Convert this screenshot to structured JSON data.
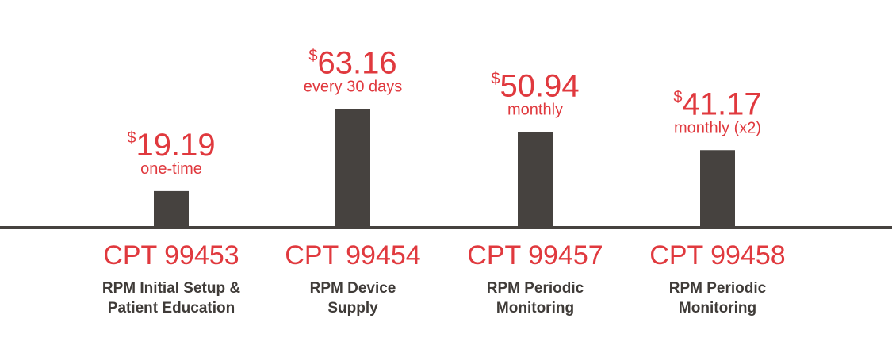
{
  "chart_data": {
    "type": "bar",
    "categories": [
      "CPT 99453",
      "CPT 99454",
      "CPT 99457",
      "CPT 99458"
    ],
    "values": [
      19.19,
      63.16,
      50.94,
      41.17
    ],
    "currency_symbol": "$",
    "value_labels": [
      "19.19",
      "63.16",
      "50.94",
      "41.17"
    ],
    "frequencies": [
      "one-time",
      "every 30 days",
      "monthly",
      "monthly (x2)"
    ],
    "descriptions": [
      [
        "RPM Initial Setup &",
        "Patient Education"
      ],
      [
        "RPM Device",
        "Supply"
      ],
      [
        "RPM Periodic",
        "Monitoring"
      ],
      [
        "RPM Periodic",
        "Monitoring"
      ]
    ],
    "colors": {
      "bar": "#46423f",
      "accent": "#e0393e",
      "text": "#3f3b38"
    }
  }
}
